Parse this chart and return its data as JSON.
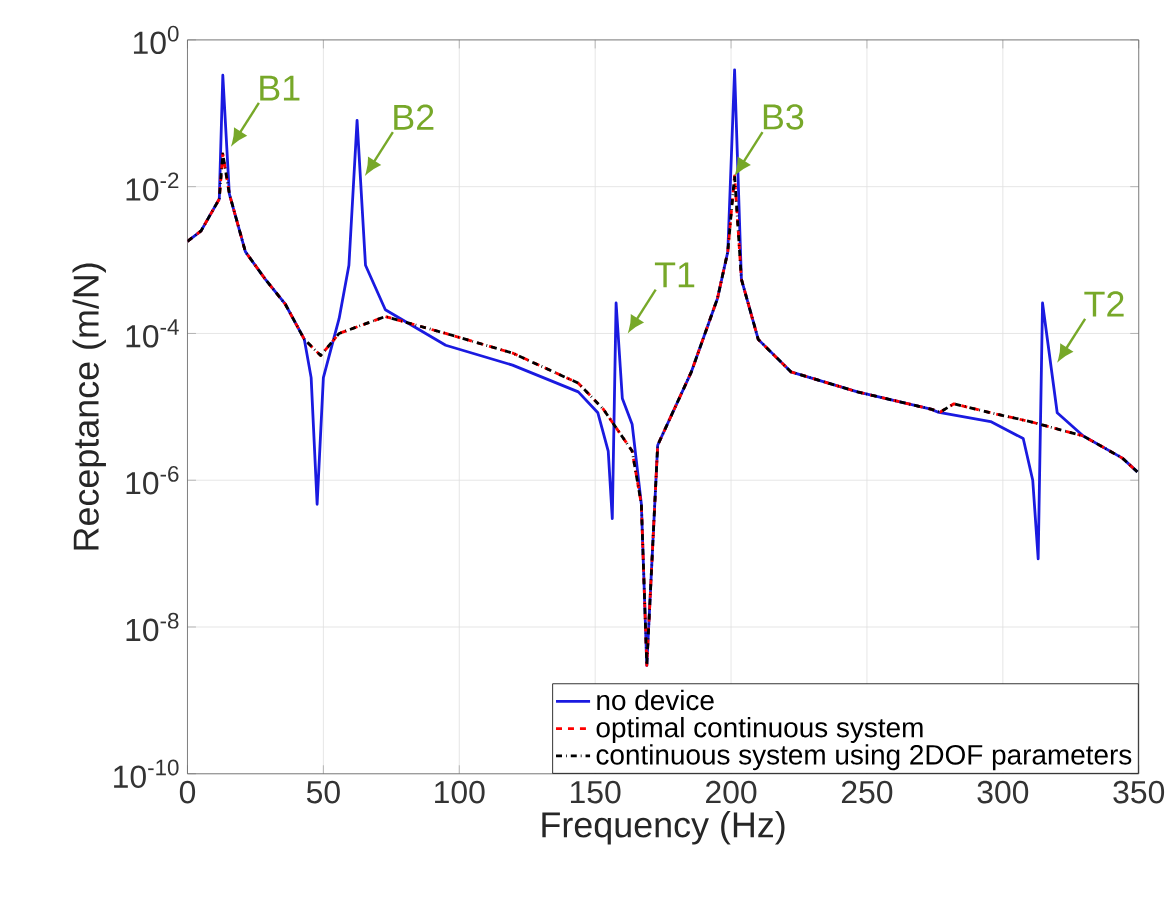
{
  "chart_data": {
    "type": "line",
    "xlabel": "Frequency (Hz)",
    "ylabel": "Receptance (m/N)",
    "log": "y",
    "grid": true,
    "legend": "bottom right",
    "marker": "none",
    "xlim": [
      0,
      350
    ],
    "xticks": [
      0,
      50,
      100,
      150,
      200,
      250,
      300,
      350
    ],
    "ylim": [
      1e-10,
      1
    ],
    "yticks": [
      {
        "value": 1e-10,
        "label": "10$^{-10}$"
      },
      {
        "value": 1e-08,
        "label": "10$^{-8}$"
      },
      {
        "value": 1e-06,
        "label": "10$^{-6}$"
      },
      {
        "value": 0.0001,
        "label": "10$^{-4}$"
      },
      {
        "value": 0.01,
        "label": "10$^{-2}$"
      },
      {
        "value": 1,
        "label": "10$^{0}$"
      }
    ],
    "series": [
      {
        "name": "no device",
        "color": "#1a1ae0",
        "line_style": "solid",
        "x": [
          0,
          5,
          11.7,
          13,
          15.4,
          21.3,
          28.6,
          36,
          43,
          45.5,
          47.7,
          50,
          55.8,
          59.4,
          62.4,
          65.5,
          72.8,
          95,
          119.6,
          143.8,
          151,
          154.8,
          156.3,
          157.7,
          160,
          163.6,
          167,
          169,
          173,
          185.4,
          195,
          198.8,
          201.3,
          203.8,
          210,
          222,
          246.5,
          273.5,
          276,
          295.5,
          307.5,
          311,
          313,
          314.6,
          320,
          329.6,
          344,
          349.5
        ],
        "values": [
          0.0018,
          0.0025,
          0.0068,
          0.33,
          0.008,
          0.0013,
          0.00055,
          0.00025,
          8.3e-05,
          2.5e-05,
          4.7e-07,
          2.5e-05,
          0.00016,
          0.00085,
          0.08,
          0.00085,
          0.00021,
          6.9e-05,
          3.7e-05,
          1.6e-05,
          8.3e-06,
          2.5e-06,
          3e-07,
          0.00026,
          1.3e-05,
          5.8e-06,
          4.7e-07,
          3e-09,
          3e-06,
          3e-05,
          0.0003,
          0.0013,
          0.39,
          0.00055,
          8.3e-05,
          3e-05,
          1.6e-05,
          9.3e-06,
          8.5e-06,
          6.3e-06,
          3.7e-06,
          1e-06,
          8.5e-08,
          0.00026,
          8.3e-06,
          4e-06,
          2e-06,
          1.3e-06
        ]
      },
      {
        "name": "optimal continuous system",
        "color": "#ff0000",
        "line_style": "dashed",
        "x": [
          0,
          5,
          11.7,
          13,
          15.4,
          21.3,
          28.6,
          36,
          43,
          49,
          55.8,
          72.8,
          95,
          119.6,
          143.8,
          153,
          163.6,
          167,
          169,
          173,
          185.4,
          195,
          198.8,
          201.3,
          203.8,
          210,
          222,
          246.5,
          273.5,
          277,
          282,
          295.5,
          310,
          329.6,
          344,
          349.5
        ],
        "values": [
          0.0018,
          0.0025,
          0.0068,
          0.028,
          0.008,
          0.0013,
          0.00055,
          0.00025,
          8.3e-05,
          5e-05,
          0.0001,
          0.00017,
          0.0001,
          5.4e-05,
          2.1e-05,
          9.3e-06,
          2.5e-06,
          4.7e-07,
          3e-09,
          3e-06,
          3e-05,
          0.0003,
          0.0013,
          0.014,
          0.00055,
          8.3e-05,
          3e-05,
          1.6e-05,
          9.3e-06,
          8.5e-06,
          1.1e-05,
          8.3e-06,
          6.3e-06,
          4e-06,
          2e-06,
          1.3e-06
        ]
      },
      {
        "name": "continuous system using 2DOF parameters",
        "color": "#000000",
        "line_style": "dashdot",
        "x": [
          0,
          5,
          11.7,
          13,
          15.4,
          21.3,
          28.6,
          36,
          43,
          49,
          55.8,
          72.8,
          95,
          119.6,
          143.8,
          153,
          163.6,
          167,
          169,
          173,
          185.4,
          195,
          198.8,
          201.3,
          203.8,
          210,
          222,
          246.5,
          273.5,
          277,
          282,
          295.5,
          310,
          329.6,
          344,
          349.5
        ],
        "values": [
          0.0018,
          0.0025,
          0.0068,
          0.028,
          0.008,
          0.0013,
          0.00055,
          0.00025,
          8.3e-05,
          5e-05,
          0.0001,
          0.00017,
          0.0001,
          5.4e-05,
          2.1e-05,
          9.3e-06,
          2.5e-06,
          4.7e-07,
          3e-09,
          3e-06,
          3e-05,
          0.0003,
          0.0013,
          0.014,
          0.00055,
          8.3e-05,
          3e-05,
          1.6e-05,
          9.3e-06,
          8.5e-06,
          1.1e-05,
          8.3e-06,
          6.3e-06,
          4e-06,
          2e-06,
          1.3e-06
        ]
      }
    ],
    "annotations": [
      {
        "text": "B1",
        "x": 16,
        "y": 0.035
      },
      {
        "text": "B2",
        "x": 65.3,
        "y": 0.014
      },
      {
        "text": "T1",
        "x": 162,
        "y": 0.0001
      },
      {
        "text": "B3",
        "x": 201.3,
        "y": 0.014
      },
      {
        "text": "T2",
        "x": 320,
        "y": 4e-05
      }
    ]
  }
}
